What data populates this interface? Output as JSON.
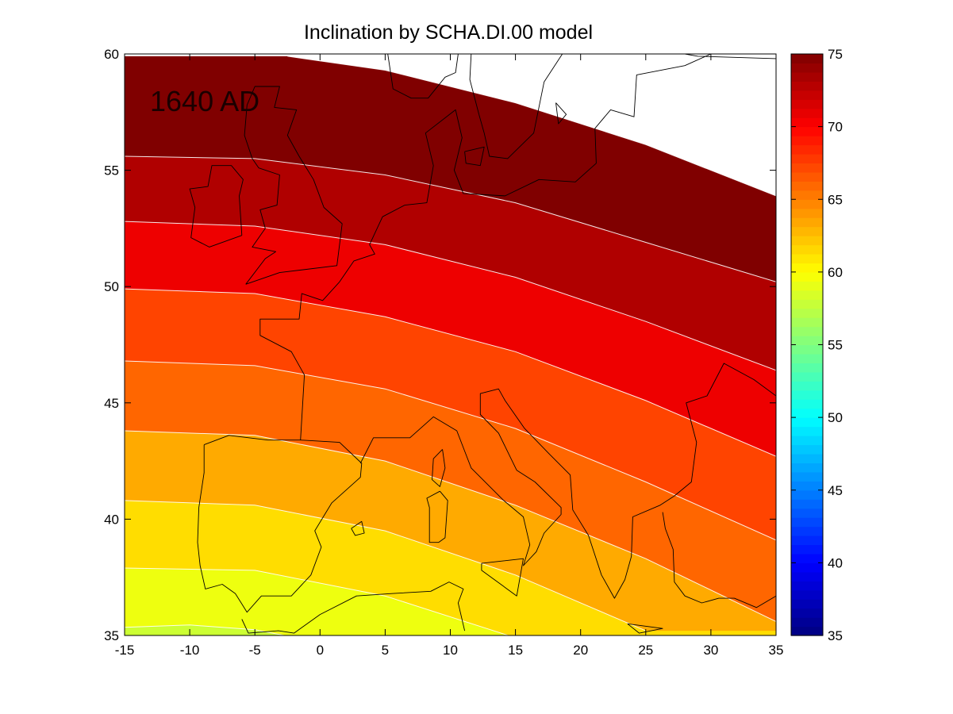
{
  "chart_data": {
    "type": "heatmap",
    "title": "Inclination by SCHA.DI.00 model",
    "annotation": "1640 AD",
    "xlabel": "",
    "ylabel": "",
    "xlim": [
      -15,
      35
    ],
    "ylim": [
      35,
      60
    ],
    "x_ticks": [
      "-15",
      "-10",
      "-5",
      "0",
      "5",
      "10",
      "15",
      "20",
      "25",
      "30",
      "35"
    ],
    "y_ticks": [
      "35",
      "40",
      "45",
      "50",
      "55",
      "60"
    ],
    "colorbar": {
      "range": [
        35,
        75
      ],
      "ticks": [
        "35",
        "40",
        "45",
        "50",
        "55",
        "60",
        "65",
        "70",
        "75"
      ],
      "colormap": "jet",
      "placement": "right"
    },
    "contour_levels": [
      57.5,
      60,
      62.5,
      65,
      67.5,
      70,
      72.5
    ],
    "contour_bands": [
      {
        "range": [
          55,
          57.5
        ],
        "color": "#ccff33"
      },
      {
        "range": [
          57.5,
          60
        ],
        "color": "#eeff0f"
      },
      {
        "range": [
          60,
          62.5
        ],
        "color": "#ffdd00"
      },
      {
        "range": [
          62.5,
          65
        ],
        "color": "#ffaa00"
      },
      {
        "range": [
          65,
          67.5
        ],
        "color": "#ff6600"
      },
      {
        "range": [
          67.5,
          70
        ],
        "color": "#ff4400"
      },
      {
        "range": [
          70,
          72.5
        ],
        "color": "#ee0000"
      },
      {
        "range": [
          72.5,
          75
        ],
        "color": "#b00000"
      },
      {
        "range": [
          75,
          77.5
        ],
        "color": "#800000"
      }
    ],
    "contour_lines": [
      {
        "level": 57.5,
        "points": [
          [
            -15,
            35.35
          ],
          [
            -10,
            35.45
          ],
          [
            -5,
            35.25
          ],
          [
            0,
            34.7
          ]
        ]
      },
      {
        "level": 60,
        "points": [
          [
            -15,
            37.9
          ],
          [
            -5,
            37.8
          ],
          [
            5,
            36.7
          ],
          [
            15,
            34.9
          ]
        ]
      },
      {
        "level": 62.5,
        "points": [
          [
            -15,
            40.8
          ],
          [
            -5,
            40.6
          ],
          [
            5,
            39.5
          ],
          [
            15,
            37.6
          ],
          [
            25,
            35.2
          ]
        ]
      },
      {
        "level": 65,
        "points": [
          [
            -15,
            43.8
          ],
          [
            -5,
            43.6
          ],
          [
            5,
            42.5
          ],
          [
            15,
            40.6
          ],
          [
            25,
            38.3
          ],
          [
            35,
            35.6
          ]
        ]
      },
      {
        "level": 67.5,
        "points": [
          [
            -15,
            46.8
          ],
          [
            -5,
            46.6
          ],
          [
            5,
            45.6
          ],
          [
            15,
            43.9
          ],
          [
            25,
            41.6
          ],
          [
            35,
            39.1
          ]
        ]
      },
      {
        "level": 70,
        "points": [
          [
            -15,
            49.9
          ],
          [
            -5,
            49.7
          ],
          [
            5,
            48.7
          ],
          [
            15,
            47.2
          ],
          [
            25,
            45.1
          ],
          [
            35,
            42.7
          ]
        ]
      },
      {
        "level": 72.5,
        "points": [
          [
            -15,
            52.8
          ],
          [
            -5,
            52.6
          ],
          [
            5,
            51.8
          ],
          [
            15,
            50.4
          ],
          [
            25,
            48.5
          ],
          [
            35,
            46.4
          ]
        ]
      },
      {
        "level": 75,
        "points": [
          [
            -15,
            55.6
          ],
          [
            -5,
            55.5
          ],
          [
            5,
            54.8
          ],
          [
            15,
            53.6
          ],
          [
            25,
            51.9
          ],
          [
            35,
            50.2
          ]
        ]
      },
      {
        "level": 77.5,
        "points": [
          [
            -2.5,
            59.9
          ],
          [
            5,
            59.3
          ],
          [
            15,
            57.9
          ],
          [
            25,
            56.1
          ],
          [
            35,
            53.9
          ]
        ]
      }
    ],
    "coastlines": [
      {
        "name": "iberia",
        "points": [
          [
            -8.9,
            43.2
          ],
          [
            -8.9,
            42
          ],
          [
            -9.3,
            40.5
          ],
          [
            -9.4,
            39
          ],
          [
            -9.2,
            38
          ],
          [
            -8.8,
            37
          ],
          [
            -7.5,
            37.2
          ],
          [
            -6.5,
            36.8
          ],
          [
            -5.6,
            36
          ],
          [
            -4.5,
            36.7
          ],
          [
            -2.2,
            36.7
          ],
          [
            -0.7,
            37.6
          ],
          [
            0.1,
            38.8
          ],
          [
            -0.4,
            39.5
          ],
          [
            0.9,
            40.7
          ],
          [
            3.1,
            41.8
          ],
          [
            3.2,
            42.4
          ],
          [
            1.5,
            43.3
          ],
          [
            -1.5,
            43.4
          ],
          [
            -4,
            43.4
          ],
          [
            -7,
            43.6
          ],
          [
            -8.9,
            43.2
          ]
        ]
      },
      {
        "name": "france",
        "points": [
          [
            -1.5,
            43.4
          ],
          [
            -1.2,
            46.2
          ],
          [
            -2.2,
            47.2
          ],
          [
            -4.6,
            47.9
          ],
          [
            -4.6,
            48.6
          ],
          [
            -1.6,
            48.6
          ],
          [
            -1.4,
            49.7
          ],
          [
            0.2,
            49.4
          ],
          [
            1.5,
            50.2
          ],
          [
            2.6,
            51.1
          ],
          [
            4.2,
            51.4
          ],
          [
            3.8,
            51.8
          ],
          [
            4.8,
            53
          ],
          [
            6.5,
            53.5
          ],
          [
            8.2,
            53.6
          ],
          [
            8.7,
            55.2
          ],
          [
            8.1,
            56.6
          ],
          [
            10.4,
            57.6
          ],
          [
            10.9,
            56.4
          ],
          [
            10.3,
            55
          ],
          [
            11,
            54
          ],
          [
            14.2,
            53.9
          ],
          [
            16.8,
            54.6
          ],
          [
            19.6,
            54.5
          ],
          [
            21.2,
            55.3
          ],
          [
            21.1,
            56.8
          ],
          [
            22.3,
            57.6
          ],
          [
            24.1,
            57.3
          ],
          [
            24.3,
            59.1
          ],
          [
            28,
            59.5
          ],
          [
            30,
            60
          ]
        ]
      },
      {
        "name": "riviera_italy",
        "points": [
          [
            3.1,
            42.4
          ],
          [
            4.1,
            43.5
          ],
          [
            6.9,
            43.5
          ],
          [
            8.7,
            44.4
          ],
          [
            10.5,
            43.8
          ],
          [
            11.6,
            42.2
          ],
          [
            14.1,
            40.8
          ],
          [
            15.6,
            40.1
          ],
          [
            16.1,
            38.9
          ],
          [
            15.6,
            38
          ],
          [
            16.6,
            38.6
          ],
          [
            17.2,
            39.4
          ],
          [
            18.5,
            40.2
          ],
          [
            18.5,
            40.5
          ],
          [
            16.5,
            41.6
          ],
          [
            15.1,
            42.1
          ],
          [
            13.7,
            43.7
          ],
          [
            12.3,
            44.5
          ],
          [
            12.3,
            45.4
          ],
          [
            13.7,
            45.6
          ],
          [
            14.2,
            45.1
          ],
          [
            15.7,
            43.9
          ],
          [
            17.6,
            42.8
          ],
          [
            19.2,
            41.9
          ],
          [
            19.4,
            40.4
          ],
          [
            20.6,
            39.3
          ],
          [
            21.6,
            37.6
          ],
          [
            22.6,
            36.6
          ],
          [
            23.4,
            37.4
          ],
          [
            23.9,
            38.4
          ],
          [
            24,
            40.1
          ],
          [
            26.1,
            40.6
          ],
          [
            27.2,
            41
          ],
          [
            28.5,
            41.6
          ],
          [
            28.9,
            43.3
          ],
          [
            28.1,
            45
          ],
          [
            29.7,
            45.3
          ],
          [
            31,
            46.7
          ],
          [
            33.3,
            46
          ],
          [
            35,
            45.3
          ]
        ]
      },
      {
        "name": "turkey",
        "points": [
          [
            26.3,
            40.3
          ],
          [
            26.5,
            39.6
          ],
          [
            27.1,
            38.7
          ],
          [
            27.2,
            37.3
          ],
          [
            28,
            36.7
          ],
          [
            29.3,
            36.4
          ],
          [
            30.6,
            36.6
          ],
          [
            31.8,
            36.6
          ],
          [
            33.5,
            36.2
          ],
          [
            35,
            36.7
          ]
        ]
      },
      {
        "name": "africa",
        "points": [
          [
            -6,
            35.7
          ],
          [
            -5.5,
            35.1
          ],
          [
            -3.2,
            35.2
          ],
          [
            -2,
            35.1
          ],
          [
            0,
            35.9
          ],
          [
            2.8,
            36.7
          ],
          [
            5.5,
            36.8
          ],
          [
            8.5,
            36.9
          ],
          [
            9.9,
            37.3
          ],
          [
            11,
            37
          ],
          [
            10.6,
            36.4
          ],
          [
            11.1,
            35.2
          ]
        ]
      },
      {
        "name": "great_britain",
        "points": [
          [
            -5.7,
            50.1
          ],
          [
            -3.1,
            50.6
          ],
          [
            1.3,
            50.9
          ],
          [
            1.7,
            52.7
          ],
          [
            0.3,
            53.4
          ],
          [
            -0.5,
            54.6
          ],
          [
            -1.6,
            55.6
          ],
          [
            -2.5,
            56.5
          ],
          [
            -1.8,
            57.6
          ],
          [
            -3.5,
            57.7
          ],
          [
            -3.1,
            58.6
          ],
          [
            -5,
            58.6
          ],
          [
            -5.6,
            57.8
          ],
          [
            -5.8,
            56.5
          ],
          [
            -5.2,
            55.5
          ],
          [
            -4.7,
            55.1
          ],
          [
            -3.1,
            54.8
          ],
          [
            -3.3,
            53.5
          ],
          [
            -4.6,
            53.3
          ],
          [
            -4.2,
            52.5
          ],
          [
            -5.2,
            51.7
          ],
          [
            -3.4,
            51.5
          ],
          [
            -4.2,
            51.2
          ],
          [
            -5.7,
            50.1
          ]
        ]
      },
      {
        "name": "ireland",
        "points": [
          [
            -6,
            52.2
          ],
          [
            -6.2,
            53.9
          ],
          [
            -5.9,
            54.6
          ],
          [
            -6.8,
            55.2
          ],
          [
            -8.3,
            55.2
          ],
          [
            -8.6,
            54.3
          ],
          [
            -10,
            54.2
          ],
          [
            -9.6,
            53.4
          ],
          [
            -9.9,
            52.1
          ],
          [
            -8.5,
            51.7
          ],
          [
            -6,
            52.2
          ]
        ]
      },
      {
        "name": "sweden",
        "points": [
          [
            12.2,
            57.4
          ],
          [
            11.5,
            58.9
          ],
          [
            11.6,
            60
          ]
        ]
      },
      {
        "name": "sweden_east",
        "points": [
          [
            18.6,
            60
          ],
          [
            17.2,
            58.8
          ],
          [
            16.4,
            56.6
          ],
          [
            14.4,
            55.5
          ],
          [
            13,
            55.6
          ],
          [
            12.6,
            56.6
          ],
          [
            12.2,
            57.4
          ]
        ]
      },
      {
        "name": "norway_tip",
        "points": [
          [
            10.6,
            60
          ],
          [
            10.4,
            59.2
          ],
          [
            9.6,
            59
          ],
          [
            8.3,
            58.1
          ],
          [
            7,
            58.1
          ],
          [
            5.6,
            58.5
          ],
          [
            5.2,
            60
          ]
        ]
      },
      {
        "name": "sardinia",
        "points": [
          [
            9.2,
            41.2
          ],
          [
            9.8,
            40.8
          ],
          [
            9.6,
            39.2
          ],
          [
            9.1,
            39
          ],
          [
            8.4,
            39
          ],
          [
            8.4,
            40.5
          ],
          [
            8.2,
            40.9
          ],
          [
            9.2,
            41.2
          ]
        ]
      },
      {
        "name": "corsica",
        "points": [
          [
            9.4,
            43
          ],
          [
            9.6,
            42.2
          ],
          [
            9.2,
            41.4
          ],
          [
            8.6,
            41.7
          ],
          [
            8.7,
            42.6
          ],
          [
            9.4,
            43
          ]
        ]
      },
      {
        "name": "sicily",
        "points": [
          [
            12.4,
            38.1
          ],
          [
            15.6,
            38.3
          ],
          [
            15.1,
            36.7
          ],
          [
            12.4,
            37.8
          ],
          [
            12.4,
            38.1
          ]
        ]
      },
      {
        "name": "crete",
        "points": [
          [
            23.6,
            35.5
          ],
          [
            26.3,
            35.3
          ],
          [
            24.5,
            35.1
          ],
          [
            23.6,
            35.5
          ]
        ]
      },
      {
        "name": "mallorca",
        "points": [
          [
            2.4,
            39.6
          ],
          [
            3.2,
            39.9
          ],
          [
            3.4,
            39.4
          ],
          [
            2.7,
            39.3
          ],
          [
            2.4,
            39.6
          ]
        ]
      },
      {
        "name": "zealand",
        "points": [
          [
            11.1,
            55.8
          ],
          [
            12.6,
            56
          ],
          [
            12.3,
            55.2
          ],
          [
            11.2,
            55.3
          ],
          [
            11.1,
            55.8
          ]
        ]
      },
      {
        "name": "gotland",
        "points": [
          [
            18.1,
            57.9
          ],
          [
            18.9,
            57.4
          ],
          [
            18.3,
            57
          ],
          [
            18.1,
            57.9
          ]
        ]
      },
      {
        "name": "baltic_east",
        "points": [
          [
            35,
            59.8
          ],
          [
            29,
            59.9
          ],
          [
            28,
            60
          ]
        ]
      }
    ]
  }
}
